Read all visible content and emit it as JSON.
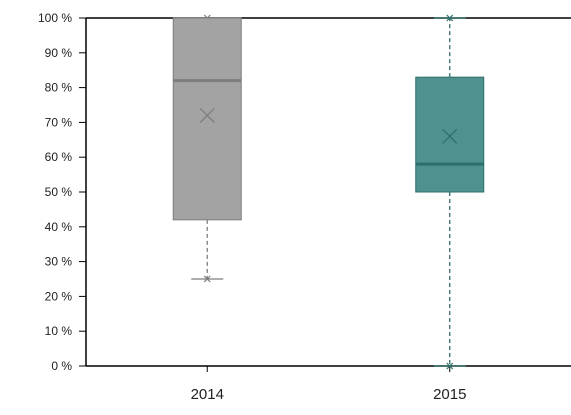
{
  "chart_data": {
    "type": "box",
    "title": "",
    "xlabel": "",
    "ylabel": "",
    "categories": [
      "2014",
      "2015"
    ],
    "y_ticks": [
      "0 %",
      "10 %",
      "20 %",
      "30 %",
      "40 %",
      "50 %",
      "60 %",
      "70 %",
      "80 %",
      "90 %",
      "100 %"
    ],
    "ylim": [
      0,
      100
    ],
    "grid": false,
    "boxes": [
      {
        "category": "2014",
        "min": 25,
        "q1": 42,
        "median": 82,
        "q3": 100,
        "max": 100,
        "mean": 72,
        "color": "#a3a3a3",
        "edge": "#7d7d7d"
      },
      {
        "category": "2015",
        "min": 0,
        "q1": 50,
        "median": 58,
        "q3": 83,
        "max": 100,
        "mean": 66,
        "color": "#4f918d",
        "edge": "#2f6f6b"
      }
    ]
  }
}
